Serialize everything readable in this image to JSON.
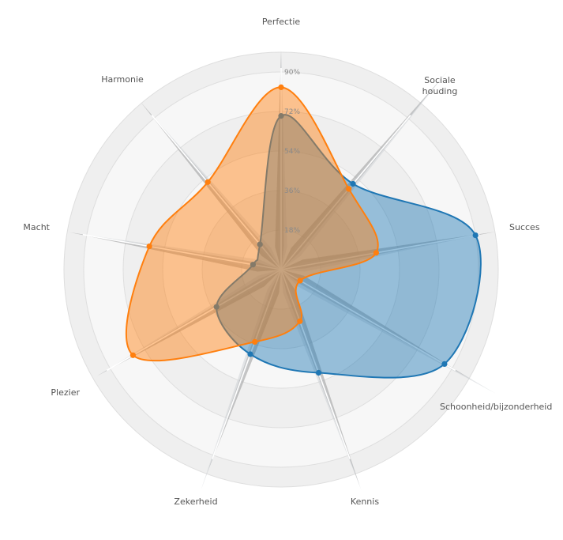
{
  "chart_data": {
    "type": "radar",
    "axes": [
      "Perfectie",
      "Sociale houding",
      "Succes",
      "Schoonheid/bijzonderheid",
      "Kennis",
      "Zekerheid",
      "Plezier",
      "Macht",
      "Harmonie"
    ],
    "axis_label_lines": [
      [
        "Perfectie"
      ],
      [
        "Sociale",
        "houding"
      ],
      [
        "Succes"
      ],
      [
        "Schoonheid/bijzonderheid"
      ],
      [
        "Kennis"
      ],
      [
        "Zekerheid"
      ],
      [
        "Plezier"
      ],
      [
        "Macht"
      ],
      [
        "Harmonie"
      ]
    ],
    "ticks": [
      "18%",
      "36%",
      "54%",
      "72%",
      "90%"
    ],
    "tick_values": [
      18,
      36,
      54,
      72,
      90
    ],
    "rmax": 90,
    "grid": true,
    "series": [
      {
        "values": [
          70,
          51,
          90,
          86,
          50,
          41,
          34,
          13,
          15
        ],
        "color": "#1f77b4"
      },
      {
        "values": [
          83,
          48,
          44,
          10,
          25,
          35,
          78,
          61,
          52
        ],
        "color": "#ff7f0e"
      }
    ],
    "spikes": [
      {
        "values": [
          100,
          112,
          99,
          101,
          105,
          98,
          97,
          98,
          100
        ],
        "color": "#999999"
      },
      {
        "values": [
          99,
          118,
          94,
          113,
          107,
          107,
          96,
          95,
          96
        ],
        "color": "#c8ccd0"
      }
    ]
  }
}
